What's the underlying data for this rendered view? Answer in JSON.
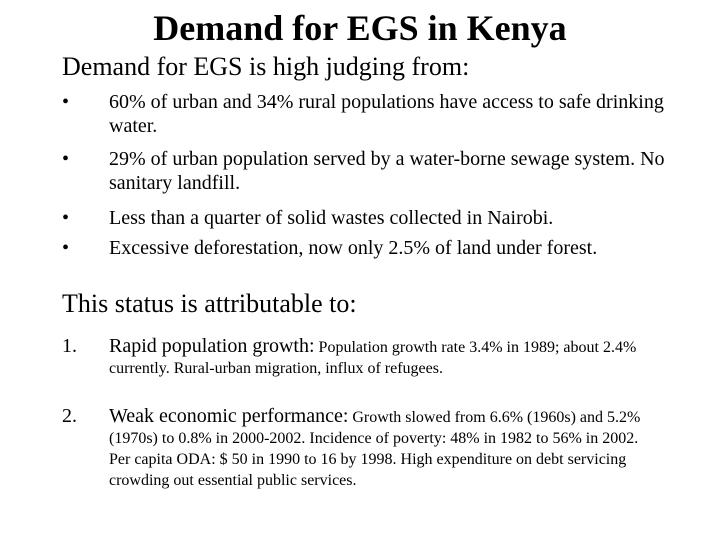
{
  "title": "Demand for EGS in Kenya",
  "section1": {
    "heading": "Demand for EGS is high judging from:",
    "bullet_symbol": "•",
    "bullets": [
      "60% of urban and 34% rural populations have access to safe drinking water.",
      "29% of urban population served by a water-borne sewage system. No sanitary landfill.",
      "Less than a quarter of solid wastes collected in Nairobi.",
      "Excessive deforestation, now only 2.5% of land under forest."
    ]
  },
  "section2": {
    "heading": "This status is attributable to:",
    "items": [
      {
        "number": "1.",
        "lead": "Rapid population growth:",
        "detail": " Population growth rate 3.4% in 1989; about 2.4% currently. Rural-urban migration, influx of refugees."
      },
      {
        "number": "2.",
        "lead": "Weak economic performance:",
        "detail": " Growth slowed from 6.6% (1960s) and 5.2% (1970s) to 0.8% in 2000-2002. Incidence of poverty: 48% in 1982 to 56% in 2002. Per capita ODA: $ 50 in 1990 to 16 by 1998. High expenditure on debt servicing crowding out essential public services."
      }
    ]
  }
}
